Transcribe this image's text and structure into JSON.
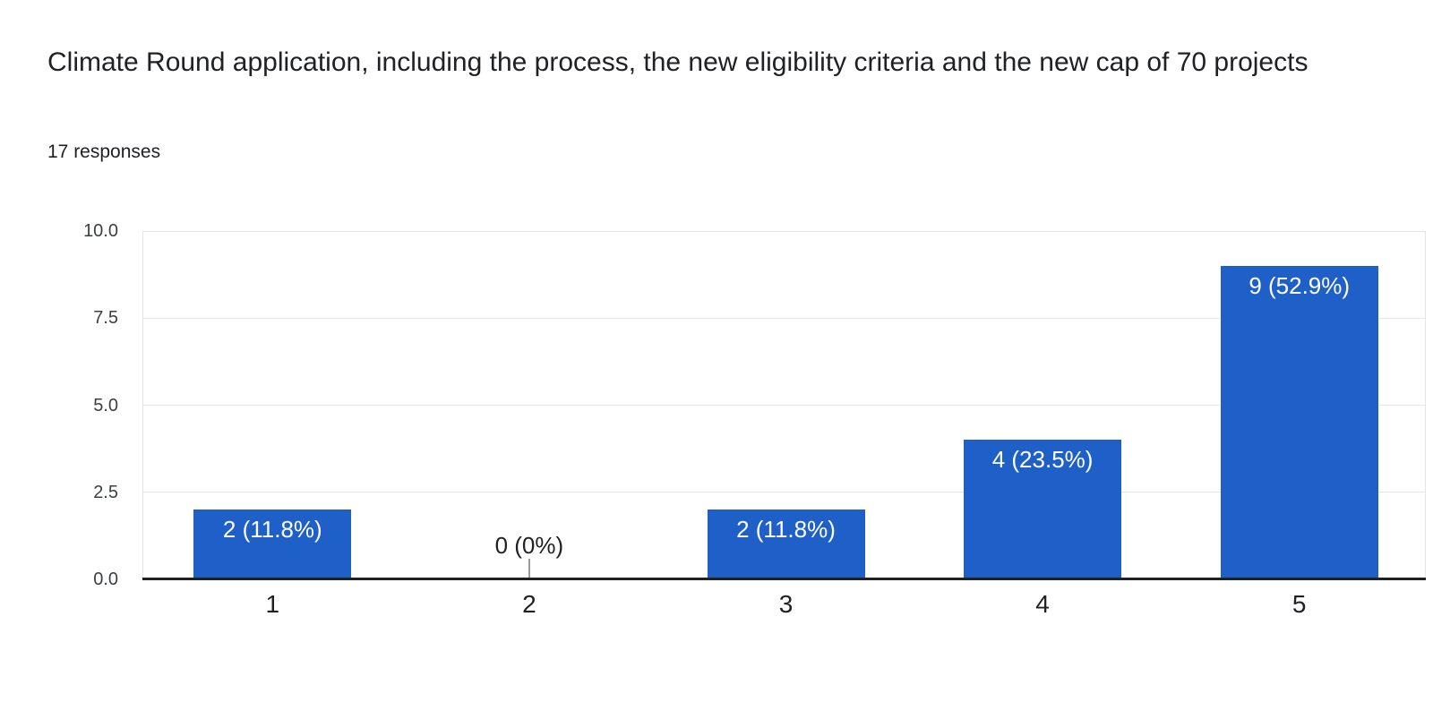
{
  "header": {
    "title": "Climate Round application, including the process, the new eligibility criteria and the new cap of 70 projects",
    "responses_count": "17 responses"
  },
  "chart_data": {
    "type": "bar",
    "title": "Climate Round application, including the process, the new eligibility criteria and the new cap of 70 projects",
    "subtitle": "17 responses",
    "categories": [
      "1",
      "2",
      "3",
      "4",
      "5"
    ],
    "values": [
      2,
      0,
      2,
      4,
      9
    ],
    "percentages": [
      11.8,
      0,
      11.8,
      23.5,
      52.9
    ],
    "bar_labels": [
      "2 (11.8%)",
      "0 (0%)",
      "2 (11.8%)",
      "4 (23.5%)",
      "9 (52.9%)"
    ],
    "xlabel": "",
    "ylabel": "",
    "ylim": [
      0,
      10
    ],
    "yticks": [
      0,
      2.5,
      5,
      7.5,
      10
    ],
    "ytick_labels": [
      "0.0",
      "2.5",
      "5.0",
      "7.5",
      "10.0"
    ],
    "grid": true,
    "legend": "none",
    "bar_color": "#1e5fc8",
    "bar_label_color": "#ffffff",
    "gridline_color": "#e6e6e6",
    "baseline_color": "#212121",
    "zero_tick_color": "#9a9a9a",
    "axis_text_color": "#3c4043",
    "text_color": "#202124"
  }
}
